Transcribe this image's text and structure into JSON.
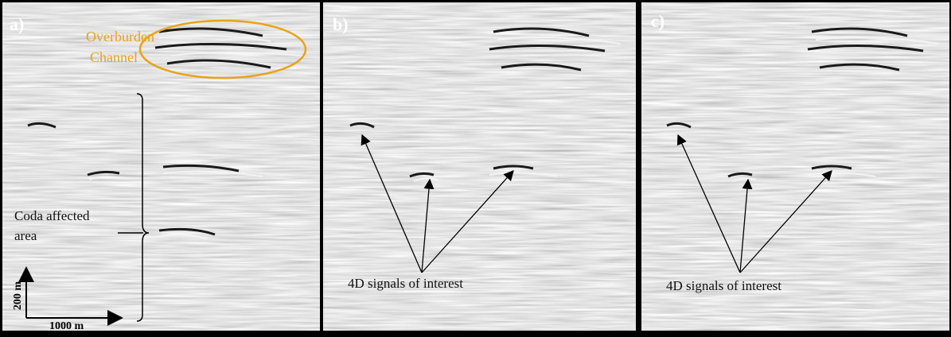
{
  "panels": [
    {
      "label": "a)",
      "channel_label": [
        "Overburden",
        "Channel"
      ],
      "coda_label": [
        "Coda affected",
        "area"
      ],
      "scale": {
        "vertical": "200 m",
        "horizontal": "1000 m"
      }
    },
    {
      "label": "b)",
      "signals_label": "4D signals of interest"
    },
    {
      "label": "c)",
      "signals_label": "4D signals of interest"
    }
  ]
}
